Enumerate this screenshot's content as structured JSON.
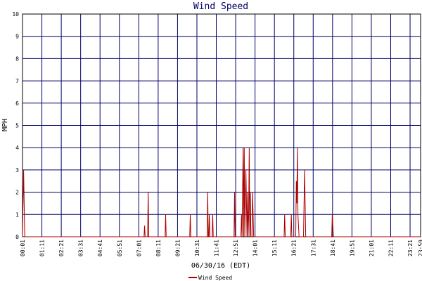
{
  "chart_data": {
    "type": "line",
    "title": "Wind Speed",
    "xlabel": "06/30/16 (EDT)",
    "ylabel": "MPH",
    "ylim": [
      0,
      10
    ],
    "yticks": [
      "0",
      "1",
      "2",
      "3",
      "4",
      "5",
      "6",
      "7",
      "8",
      "9",
      "10"
    ],
    "xlim": [
      "00:01",
      "23:59"
    ],
    "xticks": [
      "00:01",
      "01:11",
      "02:21",
      "03:31",
      "04:41",
      "05:51",
      "07:01",
      "08:11",
      "09:21",
      "10:31",
      "11:41",
      "12:51",
      "14:01",
      "15:11",
      "16:21",
      "17:31",
      "18:41",
      "19:51",
      "21:01",
      "22:11",
      "23:21",
      "23:59"
    ],
    "grid": true,
    "legend_position": "bottom-center",
    "series": [
      {
        "name": "Wind Speed",
        "color": "#aa0000",
        "x": [
          "00:01",
          "00:03",
          "00:05",
          "00:07",
          "00:09",
          "07:20",
          "07:22",
          "07:24",
          "07:33",
          "07:35",
          "07:37",
          "08:36",
          "08:38",
          "08:40",
          "10:05",
          "10:07",
          "10:09",
          "11:08",
          "11:10",
          "11:12",
          "11:14",
          "11:16",
          "11:18",
          "11:26",
          "11:28",
          "11:30",
          "12:45",
          "12:47",
          "12:49",
          "13:10",
          "13:12",
          "13:14",
          "13:16",
          "13:18",
          "13:20",
          "13:22",
          "13:24",
          "13:26",
          "13:28",
          "13:32",
          "13:34",
          "13:36",
          "13:38",
          "13:40",
          "13:42",
          "13:44",
          "13:46",
          "13:50",
          "13:52",
          "13:54",
          "13:56",
          "15:46",
          "15:48",
          "15:50",
          "16:10",
          "16:12",
          "16:14",
          "16:28",
          "16:30",
          "16:32",
          "16:34",
          "16:36",
          "16:38",
          "16:40",
          "16:56",
          "16:58",
          "17:00",
          "17:02",
          "17:04",
          "18:38",
          "18:40",
          "18:42",
          "18:44",
          "23:59"
        ],
        "y": [
          0,
          1.5,
          3,
          1.5,
          0,
          0,
          0.5,
          0,
          0,
          2,
          0,
          0,
          1,
          0,
          0,
          1,
          0,
          0,
          2,
          0,
          0,
          1,
          0,
          0,
          1,
          0,
          0,
          2,
          0,
          0,
          1,
          0,
          2,
          4,
          0,
          4,
          0,
          1.5,
          3,
          0,
          2,
          0,
          1,
          4,
          0,
          2,
          0,
          0,
          2,
          1,
          0,
          0,
          1,
          0,
          0,
          1,
          0,
          0,
          2.5,
          1.5,
          4,
          1,
          0.5,
          0,
          0,
          1.5,
          3,
          1.5,
          0,
          0,
          1,
          0.5,
          0,
          0
        ]
      }
    ]
  }
}
